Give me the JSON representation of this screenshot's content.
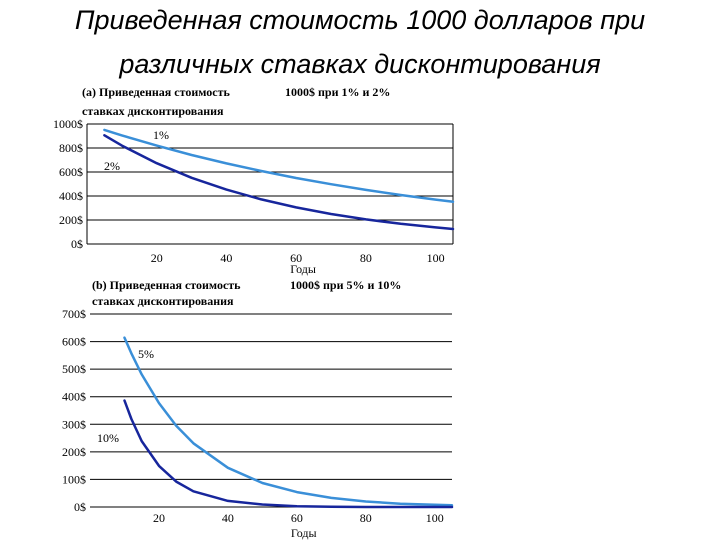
{
  "title": {
    "line1": "Приведенная стоимость 1000 долларов при",
    "line2": "различных ставках дисконтирования"
  },
  "colors": {
    "light": "#3a8fd8",
    "dark": "#17269c",
    "grid": "#000000"
  },
  "chart_data": [
    {
      "type": "line",
      "title_part1": "(а) Приведенная  стоимость",
      "title_part2": "1000$ при 1% и 2%",
      "title_line2": "ставках дисконтирования",
      "xlabel": "Годы",
      "ylabel": "",
      "xlim": [
        0,
        105
      ],
      "ylim": [
        0,
        1000
      ],
      "x_ticks": [
        "20",
        "40",
        "60",
        "80",
        "100"
      ],
      "y_ticks": [
        "1000$",
        "800$",
        "600$",
        "400$",
        "200$",
        "0$"
      ],
      "grid": true,
      "series": [
        {
          "name": "1%",
          "color": "light",
          "x": [
            5,
            10,
            20,
            30,
            40,
            50,
            60,
            70,
            80,
            90,
            100,
            105
          ],
          "y": [
            951,
            905,
            820,
            742,
            672,
            608,
            550,
            498,
            451,
            408,
            370,
            352
          ]
        },
        {
          "name": "2%",
          "color": "dark",
          "x": [
            5,
            10,
            20,
            30,
            40,
            50,
            60,
            70,
            80,
            90,
            100,
            105
          ],
          "y": [
            906,
            820,
            673,
            552,
            453,
            372,
            305,
            250,
            205,
            168,
            138,
            125
          ]
        }
      ]
    },
    {
      "type": "line",
      "title_part1": "(b) Приведенная  стоимость",
      "title_part2": "1000$ при 5% и 10%",
      "title_line2": "ставках дисконтирования",
      "xlabel": "Годы",
      "ylabel": "",
      "xlim": [
        0,
        105
      ],
      "ylim": [
        0,
        700
      ],
      "x_ticks": [
        "20",
        "40",
        "60",
        "80",
        "100"
      ],
      "y_ticks": [
        "700$",
        "600$",
        "500$",
        "400$",
        "300$",
        "200$",
        "100$",
        "0$"
      ],
      "grid": true,
      "series": [
        {
          "name": "5%",
          "color": "light",
          "x": [
            10,
            12,
            15,
            20,
            25,
            30,
            40,
            50,
            60,
            70,
            80,
            90,
            100,
            105
          ],
          "y": [
            614,
            557,
            481,
            377,
            295,
            231,
            142,
            87,
            54,
            33,
            20,
            12,
            8,
            6
          ]
        },
        {
          "name": "10%",
          "color": "dark",
          "x": [
            10,
            12,
            15,
            20,
            25,
            30,
            40,
            50,
            60,
            70,
            80,
            90,
            100,
            105
          ],
          "y": [
            386,
            319,
            239,
            149,
            92,
            57,
            22,
            9,
            3,
            1,
            0,
            0,
            0,
            0
          ]
        }
      ]
    }
  ]
}
